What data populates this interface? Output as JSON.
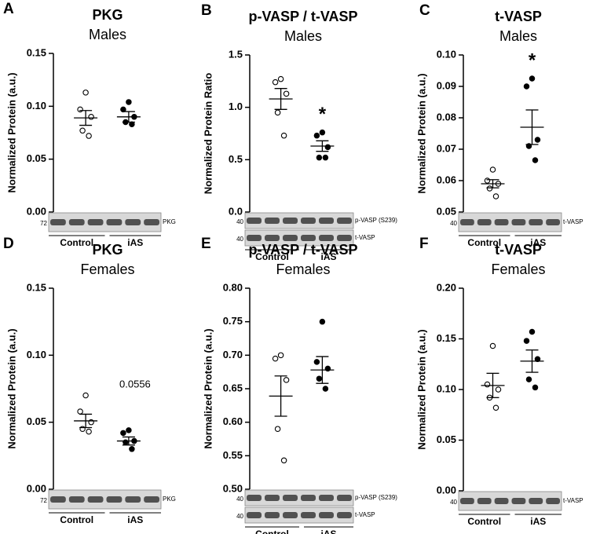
{
  "chart_data": [
    {
      "type": "dot",
      "panel": "A",
      "title": "PKG",
      "subtitle": "Males",
      "ylabel": "Normalized Protein (a.u.)",
      "categories": [
        "Control",
        "iAS"
      ],
      "groups": [
        {
          "filled": false,
          "values": [
            0.113,
            0.097,
            0.09,
            0.077,
            0.072
          ],
          "mean": 0.089,
          "sem": 0.007
        },
        {
          "filled": true,
          "values": [
            0.104,
            0.097,
            0.09,
            0.085,
            0.083
          ],
          "mean": 0.09,
          "sem": 0.005
        }
      ],
      "ylim": [
        0,
        0.15
      ],
      "yticks": [
        {
          "value": 0,
          "label": "0.00"
        },
        0.05,
        {
          "value": 0.1,
          "label": "0.10"
        },
        0.15
      ],
      "blots": [
        {
          "marker": "72",
          "label": "PKG"
        }
      ]
    },
    {
      "type": "dot",
      "panel": "B",
      "title": "p-VASP / t-VASP",
      "subtitle": "Males",
      "ylabel": "Normalized Protein Ratio",
      "categories": [
        "Control",
        "iAS"
      ],
      "groups": [
        {
          "filled": false,
          "values": [
            1.27,
            1.24,
            1.13,
            0.95,
            0.73
          ],
          "mean": 1.08,
          "sem": 0.1
        },
        {
          "filled": true,
          "values": [
            0.76,
            0.73,
            0.62,
            0.52,
            0.52
          ],
          "mean": 0.63,
          "sem": 0.05
        }
      ],
      "ylim": [
        0,
        1.5
      ],
      "yticks": [
        {
          "value": 0,
          "label": "0.0"
        },
        0.5,
        {
          "value": 1,
          "label": "1.0"
        },
        1.5
      ],
      "annotation": "*",
      "blots": [
        {
          "marker": "40",
          "label": "p-VASP (S239)"
        },
        {
          "marker": "40",
          "label": "t-VASP"
        }
      ]
    },
    {
      "type": "dot",
      "panel": "C",
      "title": "t-VASP",
      "subtitle": "Males",
      "ylabel": "Normalized Protein (a.u.)",
      "categories": [
        "Control",
        "iAS"
      ],
      "groups": [
        {
          "filled": false,
          "values": [
            0.0635,
            0.06,
            0.059,
            0.0575,
            0.055
          ],
          "mean": 0.059,
          "sem": 0.0013
        },
        {
          "filled": true,
          "values": [
            0.0925,
            0.09,
            0.073,
            0.071,
            0.0665
          ],
          "mean": 0.077,
          "sem": 0.0055
        }
      ],
      "ylim": [
        0.05,
        0.1
      ],
      "yticks": [
        0.05,
        0.06,
        0.07,
        0.08,
        0.09,
        {
          "value": 0.1,
          "label": "0.10"
        }
      ],
      "annotation": "*",
      "blots": [
        {
          "marker": "40",
          "label": "t-VASP"
        }
      ]
    },
    {
      "type": "dot",
      "panel": "D",
      "title": "PKG",
      "subtitle": "Females",
      "ylabel": "Normalized Protein (a.u.)",
      "categories": [
        "Control",
        "iAS"
      ],
      "groups": [
        {
          "filled": false,
          "values": [
            0.07,
            0.058,
            0.05,
            0.045,
            0.043
          ],
          "mean": 0.051,
          "sem": 0.005
        },
        {
          "filled": true,
          "values": [
            0.044,
            0.042,
            0.036,
            0.035,
            0.03
          ],
          "mean": 0.036,
          "sem": 0.003
        }
      ],
      "ylim": [
        0,
        0.15
      ],
      "yticks": [
        {
          "value": 0,
          "label": "0.00"
        },
        0.05,
        {
          "value": 0.1,
          "label": "0.10"
        },
        0.15
      ],
      "annotation": "0.0556",
      "blots": [
        {
          "marker": "72",
          "label": "PKG"
        }
      ]
    },
    {
      "type": "dot",
      "panel": "E",
      "title": "p-VASP / t-VASP",
      "subtitle": "Females",
      "ylabel": "Normalized Protein (a.u.)",
      "categories": [
        "Control",
        "iAS"
      ],
      "groups": [
        {
          "filled": false,
          "values": [
            0.7,
            0.695,
            0.663,
            0.59,
            0.543
          ],
          "mean": 0.639,
          "sem": 0.03
        },
        {
          "filled": true,
          "values": [
            0.75,
            0.69,
            0.68,
            0.665,
            0.65
          ],
          "mean": 0.678,
          "sem": 0.02
        }
      ],
      "ylim": [
        0.5,
        0.8
      ],
      "yticks": [
        {
          "value": 0.5,
          "label": "0.50"
        },
        0.55,
        {
          "value": 0.6,
          "label": "0.60"
        },
        0.65,
        {
          "value": 0.7,
          "label": "0.70"
        },
        0.75,
        {
          "value": 0.8,
          "label": "0.80"
        }
      ],
      "blots": [
        {
          "marker": "40",
          "label": "p-VASP (S239)"
        },
        {
          "marker": "40",
          "label": "t-VASP"
        }
      ]
    },
    {
      "type": "dot",
      "panel": "F",
      "title": "t-VASP",
      "subtitle": "Females",
      "ylabel": "Normalized Protein (a.u.)",
      "categories": [
        "Control",
        "iAS"
      ],
      "groups": [
        {
          "filled": false,
          "values": [
            0.143,
            0.105,
            0.1,
            0.092,
            0.082
          ],
          "mean": 0.104,
          "sem": 0.012
        },
        {
          "filled": true,
          "values": [
            0.157,
            0.148,
            0.13,
            0.11,
            0.102
          ],
          "mean": 0.128,
          "sem": 0.011
        }
      ],
      "ylim": [
        0,
        0.2
      ],
      "yticks": [
        {
          "value": 0,
          "label": "0.00"
        },
        0.05,
        {
          "value": 0.1,
          "label": "0.10"
        },
        0.15,
        {
          "value": 0.2,
          "label": "0.20"
        }
      ],
      "blots": [
        {
          "marker": "40",
          "label": "t-VASP"
        }
      ]
    }
  ]
}
